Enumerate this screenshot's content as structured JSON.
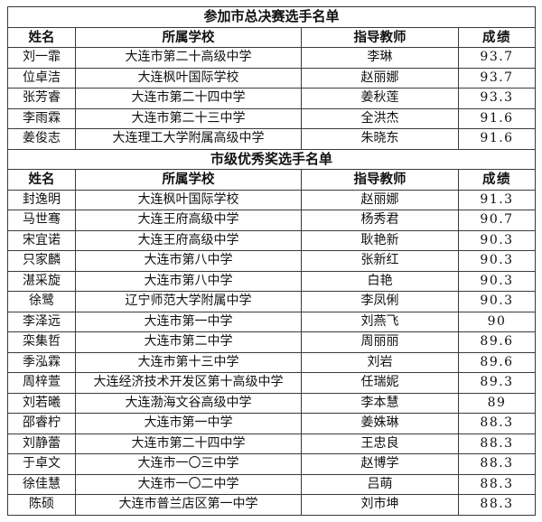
{
  "page": {
    "background_color": "#ffffff",
    "border_color": "#3a3a3a",
    "text_color": "#111111"
  },
  "table": {
    "sections": [
      {
        "title": "参加市总决赛选手名单",
        "headers": [
          "姓名",
          "所属学校",
          "指导教师",
          "成绩"
        ],
        "rows": [
          [
            "刘一霏",
            "大连市第二十高级中学",
            "李琳",
            "93.7"
          ],
          [
            "位卓洁",
            "大连枫叶国际学校",
            "赵丽娜",
            "93.7"
          ],
          [
            "张芳睿",
            "大连市第二十四中学",
            "姜秋莲",
            "93.3"
          ],
          [
            "李雨霖",
            "大连市第二十三中学",
            "全洪杰",
            "91.6"
          ],
          [
            "姜俊志",
            "大连理工大学附属高级中学",
            "朱晓东",
            "91.6"
          ]
        ]
      },
      {
        "title": "市级优秀奖选手名单",
        "headers": [
          "姓名",
          "所属学校",
          "指导教师",
          "成绩"
        ],
        "rows": [
          [
            "封逸明",
            "大连枫叶国际学校",
            "赵丽娜",
            "91.3"
          ],
          [
            "马世骞",
            "大连王府高级中学",
            "杨秀君",
            "90.7"
          ],
          [
            "宋宜诺",
            "大连王府高级中学",
            "耿艳新",
            "90.3"
          ],
          [
            "只家麟",
            "大连市第八中学",
            "张新红",
            "90.3"
          ],
          [
            "湛采旋",
            "大连市第八中学",
            "白艳",
            "90.3"
          ],
          [
            "徐鹭",
            "辽宁师范大学附属中学",
            "李凤俐",
            "90.3"
          ],
          [
            "李泽远",
            "大连市第一中学",
            "刘燕飞",
            "90"
          ],
          [
            "栾集哲",
            "大连市第二中学",
            "周丽丽",
            "89.6"
          ],
          [
            "季泓霖",
            "大连市第十三中学",
            "刘岩",
            "89.6"
          ],
          [
            "周梓萱",
            "大连经济技术开发区第十高级中学",
            "任瑞妮",
            "89.3"
          ],
          [
            "刘若曦",
            "大连渤海文谷高级中学",
            "李本慧",
            "89"
          ],
          [
            "邵睿柠",
            "大连市第一中学",
            "姜姝琳",
            "88.3"
          ],
          [
            "刘静蕾",
            "大连市第二十四中学",
            "王忠良",
            "88.3"
          ],
          [
            "于卓文",
            "大连市一〇三中学",
            "赵博学",
            "88.3"
          ],
          [
            "徐佳慧",
            "大连市一〇二中学",
            "吕萌",
            "88.3"
          ],
          [
            "陈硕",
            "大连市普兰店区第一中学",
            "刘市坤",
            "88.3"
          ]
        ]
      }
    ]
  }
}
